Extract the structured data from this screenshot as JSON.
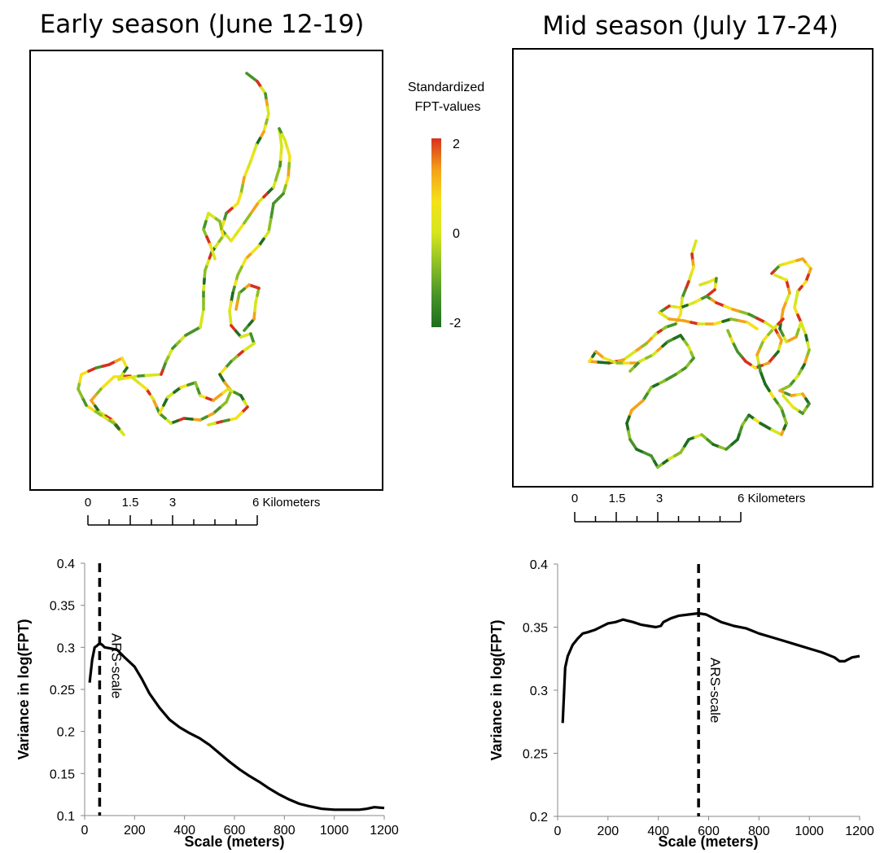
{
  "maps": [
    {
      "title": "Early season (June 12-19)",
      "scalebar": {
        "labels": [
          "0",
          "1.5",
          "3",
          "6 Kilometers"
        ],
        "km": [
          0,
          1.5,
          3,
          6
        ]
      }
    },
    {
      "title": "Mid season (July 17-24)",
      "scalebar": {
        "labels": [
          "0",
          "1.5",
          "3",
          "6 Kilometers"
        ],
        "km": [
          0,
          1.5,
          3,
          6
        ]
      }
    }
  ],
  "legend": {
    "title_line1": "Standardized",
    "title_line2": "FPT-values",
    "labels": [
      "2",
      "0",
      "-2"
    ],
    "colors": [
      "#d7301f",
      "#f4a21a",
      "#f4e11a",
      "#d6e61e",
      "#8cbf26",
      "#47932a",
      "#1e6e1e"
    ]
  },
  "chart_data": [
    {
      "type": "line",
      "xlabel": "Scale (meters)",
      "ylabel": "Variance in log(FPT)",
      "xlim": [
        0,
        1200
      ],
      "ylim": [
        0.1,
        0.4
      ],
      "xticks": [
        0,
        200,
        400,
        600,
        800,
        1000,
        1200
      ],
      "yticks": [
        0.1,
        0.15,
        0.2,
        0.25,
        0.3,
        0.35,
        0.4
      ],
      "ytick_labels": [
        "0.1",
        "0.15",
        "0.2",
        "0.25",
        "0.3",
        "0.35",
        "0.4"
      ],
      "x": [
        20,
        30,
        40,
        50,
        60,
        70,
        80,
        100,
        130,
        160,
        200,
        230,
        260,
        300,
        340,
        380,
        420,
        460,
        500,
        540,
        580,
        620,
        660,
        700,
        740,
        780,
        820,
        860,
        900,
        950,
        1000,
        1050,
        1100,
        1130,
        1160,
        1200
      ],
      "y": [
        0.258,
        0.285,
        0.3,
        0.302,
        0.305,
        0.303,
        0.3,
        0.299,
        0.297,
        0.288,
        0.277,
        0.262,
        0.245,
        0.228,
        0.214,
        0.205,
        0.198,
        0.192,
        0.184,
        0.174,
        0.164,
        0.155,
        0.147,
        0.14,
        0.132,
        0.125,
        0.119,
        0.114,
        0.111,
        0.108,
        0.107,
        0.107,
        0.107,
        0.108,
        0.11,
        0.109
      ],
      "marker": {
        "x": 60,
        "label": "ARS-scale"
      }
    },
    {
      "type": "line",
      "xlabel": "Scale (meters)",
      "ylabel": "Variance in log(FPT)",
      "xlim": [
        0,
        1200
      ],
      "ylim": [
        0.2,
        0.4
      ],
      "xticks": [
        0,
        200,
        400,
        600,
        800,
        1000,
        1200
      ],
      "yticks": [
        0.2,
        0.25,
        0.3,
        0.35,
        0.4
      ],
      "ytick_labels": [
        "0.2",
        "0.25",
        "0.3",
        "0.35",
        "0.4"
      ],
      "x": [
        20,
        30,
        40,
        60,
        80,
        100,
        120,
        150,
        180,
        200,
        230,
        260,
        280,
        300,
        330,
        360,
        390,
        410,
        420,
        450,
        480,
        520,
        560,
        590,
        620,
        650,
        700,
        750,
        800,
        850,
        900,
        950,
        1000,
        1050,
        1100,
        1120,
        1140,
        1170,
        1200
      ],
      "y": [
        0.274,
        0.318,
        0.327,
        0.336,
        0.341,
        0.345,
        0.346,
        0.348,
        0.351,
        0.353,
        0.354,
        0.356,
        0.355,
        0.354,
        0.352,
        0.351,
        0.35,
        0.351,
        0.354,
        0.357,
        0.359,
        0.36,
        0.361,
        0.36,
        0.357,
        0.354,
        0.351,
        0.349,
        0.345,
        0.342,
        0.339,
        0.336,
        0.333,
        0.33,
        0.326,
        0.323,
        0.323,
        0.326,
        0.327
      ],
      "marker": {
        "x": 560,
        "label": "ARS-scale"
      }
    }
  ]
}
